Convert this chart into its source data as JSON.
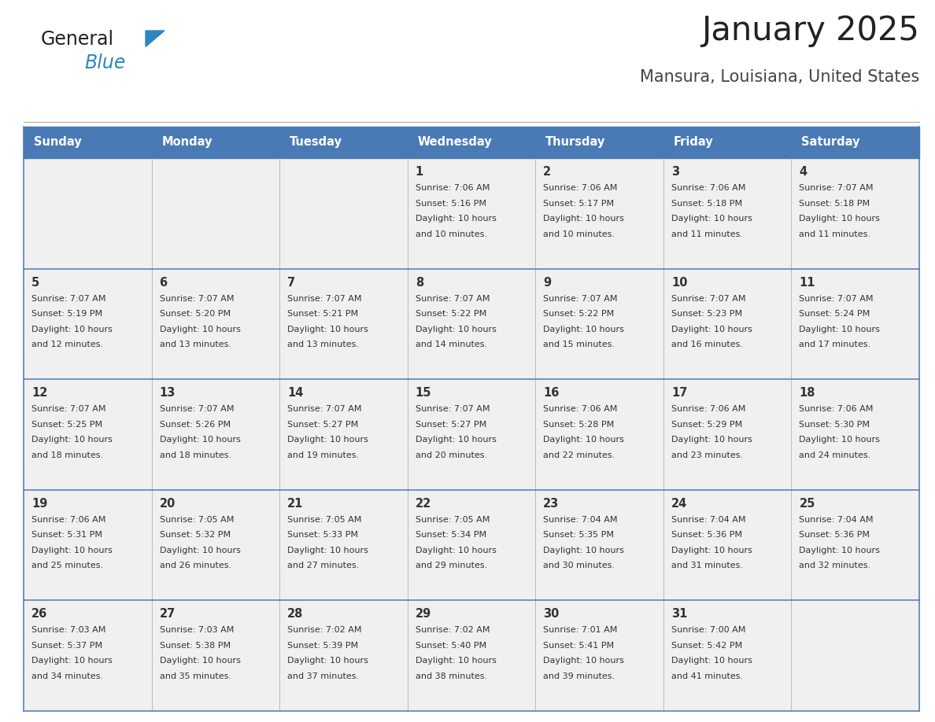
{
  "title": "January 2025",
  "subtitle": "Mansura, Louisiana, United States",
  "header_color": "#4a7ab5",
  "header_text_color": "#ffffff",
  "cell_bg_color": "#f0f0f0",
  "border_color": "#4a7ab5",
  "row_border_color": "#4a7ab5",
  "col_border_color": "#bbbbbb",
  "text_color": "#333333",
  "days_of_week": [
    "Sunday",
    "Monday",
    "Tuesday",
    "Wednesday",
    "Thursday",
    "Friday",
    "Saturday"
  ],
  "weeks": [
    [
      {
        "day": "",
        "sunrise": "",
        "sunset": "",
        "daylight": ""
      },
      {
        "day": "",
        "sunrise": "",
        "sunset": "",
        "daylight": ""
      },
      {
        "day": "",
        "sunrise": "",
        "sunset": "",
        "daylight": ""
      },
      {
        "day": "1",
        "sunrise": "7:06 AM",
        "sunset": "5:16 PM",
        "daylight": "10 hours and 10 minutes."
      },
      {
        "day": "2",
        "sunrise": "7:06 AM",
        "sunset": "5:17 PM",
        "daylight": "10 hours and 10 minutes."
      },
      {
        "day": "3",
        "sunrise": "7:06 AM",
        "sunset": "5:18 PM",
        "daylight": "10 hours and 11 minutes."
      },
      {
        "day": "4",
        "sunrise": "7:07 AM",
        "sunset": "5:18 PM",
        "daylight": "10 hours and 11 minutes."
      }
    ],
    [
      {
        "day": "5",
        "sunrise": "7:07 AM",
        "sunset": "5:19 PM",
        "daylight": "10 hours and 12 minutes."
      },
      {
        "day": "6",
        "sunrise": "7:07 AM",
        "sunset": "5:20 PM",
        "daylight": "10 hours and 13 minutes."
      },
      {
        "day": "7",
        "sunrise": "7:07 AM",
        "sunset": "5:21 PM",
        "daylight": "10 hours and 13 minutes."
      },
      {
        "day": "8",
        "sunrise": "7:07 AM",
        "sunset": "5:22 PM",
        "daylight": "10 hours and 14 minutes."
      },
      {
        "day": "9",
        "sunrise": "7:07 AM",
        "sunset": "5:22 PM",
        "daylight": "10 hours and 15 minutes."
      },
      {
        "day": "10",
        "sunrise": "7:07 AM",
        "sunset": "5:23 PM",
        "daylight": "10 hours and 16 minutes."
      },
      {
        "day": "11",
        "sunrise": "7:07 AM",
        "sunset": "5:24 PM",
        "daylight": "10 hours and 17 minutes."
      }
    ],
    [
      {
        "day": "12",
        "sunrise": "7:07 AM",
        "sunset": "5:25 PM",
        "daylight": "10 hours and 18 minutes."
      },
      {
        "day": "13",
        "sunrise": "7:07 AM",
        "sunset": "5:26 PM",
        "daylight": "10 hours and 18 minutes."
      },
      {
        "day": "14",
        "sunrise": "7:07 AM",
        "sunset": "5:27 PM",
        "daylight": "10 hours and 19 minutes."
      },
      {
        "day": "15",
        "sunrise": "7:07 AM",
        "sunset": "5:27 PM",
        "daylight": "10 hours and 20 minutes."
      },
      {
        "day": "16",
        "sunrise": "7:06 AM",
        "sunset": "5:28 PM",
        "daylight": "10 hours and 22 minutes."
      },
      {
        "day": "17",
        "sunrise": "7:06 AM",
        "sunset": "5:29 PM",
        "daylight": "10 hours and 23 minutes."
      },
      {
        "day": "18",
        "sunrise": "7:06 AM",
        "sunset": "5:30 PM",
        "daylight": "10 hours and 24 minutes."
      }
    ],
    [
      {
        "day": "19",
        "sunrise": "7:06 AM",
        "sunset": "5:31 PM",
        "daylight": "10 hours and 25 minutes."
      },
      {
        "day": "20",
        "sunrise": "7:05 AM",
        "sunset": "5:32 PM",
        "daylight": "10 hours and 26 minutes."
      },
      {
        "day": "21",
        "sunrise": "7:05 AM",
        "sunset": "5:33 PM",
        "daylight": "10 hours and 27 minutes."
      },
      {
        "day": "22",
        "sunrise": "7:05 AM",
        "sunset": "5:34 PM",
        "daylight": "10 hours and 29 minutes."
      },
      {
        "day": "23",
        "sunrise": "7:04 AM",
        "sunset": "5:35 PM",
        "daylight": "10 hours and 30 minutes."
      },
      {
        "day": "24",
        "sunrise": "7:04 AM",
        "sunset": "5:36 PM",
        "daylight": "10 hours and 31 minutes."
      },
      {
        "day": "25",
        "sunrise": "7:04 AM",
        "sunset": "5:36 PM",
        "daylight": "10 hours and 32 minutes."
      }
    ],
    [
      {
        "day": "26",
        "sunrise": "7:03 AM",
        "sunset": "5:37 PM",
        "daylight": "10 hours and 34 minutes."
      },
      {
        "day": "27",
        "sunrise": "7:03 AM",
        "sunset": "5:38 PM",
        "daylight": "10 hours and 35 minutes."
      },
      {
        "day": "28",
        "sunrise": "7:02 AM",
        "sunset": "5:39 PM",
        "daylight": "10 hours and 37 minutes."
      },
      {
        "day": "29",
        "sunrise": "7:02 AM",
        "sunset": "5:40 PM",
        "daylight": "10 hours and 38 minutes."
      },
      {
        "day": "30",
        "sunrise": "7:01 AM",
        "sunset": "5:41 PM",
        "daylight": "10 hours and 39 minutes."
      },
      {
        "day": "31",
        "sunrise": "7:00 AM",
        "sunset": "5:42 PM",
        "daylight": "10 hours and 41 minutes."
      },
      {
        "day": "",
        "sunrise": "",
        "sunset": "",
        "daylight": ""
      }
    ]
  ],
  "logo_general_color": "#222222",
  "logo_blue_color": "#2e86c1",
  "logo_triangle_color": "#2e86c1",
  "title_color": "#222222",
  "subtitle_color": "#444444",
  "separator_color": "#aaaaaa"
}
